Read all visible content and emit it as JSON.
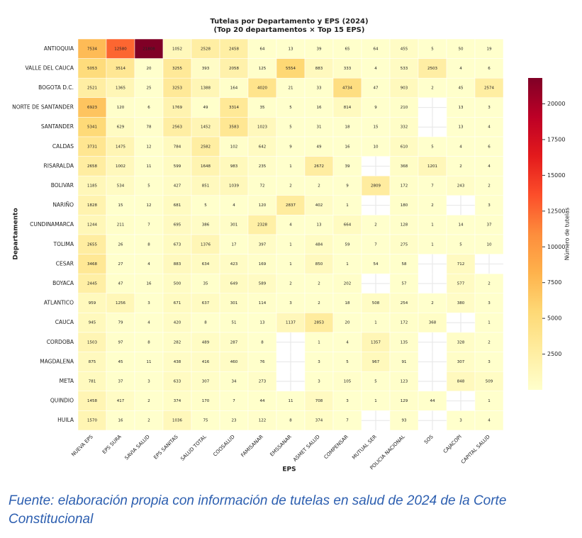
{
  "chart_data": {
    "type": "heatmap",
    "title": "Tutelas por Departamento y EPS (2024)",
    "subtitle": "(Top 20 departamentos × Top 15 EPS)",
    "x_label": "EPS",
    "y_label": "Departamento",
    "colorbar_label": "Número de tutelas",
    "colormap": "YlOrRd",
    "clim": [
      1,
      21808
    ],
    "cticks": [
      2500,
      5000,
      7500,
      10000,
      12500,
      15000,
      17500,
      20000
    ],
    "x": [
      "NUEVA EPS",
      "EPS SURA",
      "SAVIA SALUD",
      "EPS SANITAS",
      "SALUD TOTAL",
      "COOSALUD",
      "FAMISANAR",
      "EMSSANAR",
      "ASMET SALUD",
      "COMPENSAR",
      "MUTUAL SER",
      "POLICIA NACIONAL",
      "SOS",
      "CAJACOPI",
      "CAPITAL SALUD"
    ],
    "y": [
      "ANTIOQUIA",
      "VALLE DEL CAUCA",
      "BOGOTA D.C.",
      "NORTE DE SANTANDER",
      "SANTANDER",
      "CALDAS",
      "RISARALDA",
      "BOLIVAR",
      "NARIÑO",
      "CUNDINAMARCA",
      "TOLIMA",
      "CESAR",
      "BOYACA",
      "ATLANTICO",
      "CAUCA",
      "CORDOBA",
      "MAGDALENA",
      "META",
      "QUINDIO",
      "HUILA"
    ],
    "values": [
      [
        7534,
        12580,
        21808,
        1052,
        2528,
        2458,
        64,
        13,
        39,
        65,
        64,
        455,
        5,
        50,
        19
      ],
      [
        5053,
        3514,
        20,
        3255,
        393,
        2058,
        125,
        5554,
        883,
        333,
        4,
        533,
        2503,
        4,
        6
      ],
      [
        2521,
        1365,
        25,
        3253,
        1388,
        164,
        4020,
        21,
        33,
        4734,
        47,
        903,
        2,
        45,
        2574
      ],
      [
        6923,
        120,
        6,
        1769,
        49,
        3314,
        35,
        5,
        16,
        814,
        9,
        210,
        null,
        13,
        3
      ],
      [
        5341,
        629,
        78,
        2563,
        1452,
        3583,
        1023,
        5,
        31,
        18,
        15,
        332,
        null,
        13,
        4
      ],
      [
        3731,
        1475,
        12,
        784,
        2582,
        102,
        642,
        9,
        49,
        16,
        10,
        610,
        5,
        4,
        6
      ],
      [
        2658,
        1002,
        11,
        599,
        1648,
        983,
        235,
        1,
        2672,
        39,
        null,
        368,
        1201,
        2,
        4
      ],
      [
        1185,
        534,
        5,
        427,
        851,
        1039,
        72,
        2,
        2,
        9,
        2809,
        172,
        7,
        243,
        2
      ],
      [
        1828,
        15,
        12,
        681,
        5,
        4,
        120,
        2837,
        402,
        1,
        null,
        180,
        2,
        null,
        3
      ],
      [
        1244,
        211,
        7,
        695,
        386,
        301,
        2328,
        4,
        13,
        664,
        2,
        128,
        1,
        14,
        37
      ],
      [
        2655,
        26,
        8,
        673,
        1376,
        17,
        397,
        1,
        484,
        59,
        7,
        275,
        1,
        5,
        10
      ],
      [
        3468,
        27,
        4,
        883,
        634,
        423,
        169,
        1,
        850,
        1,
        54,
        58,
        null,
        712,
        null
      ],
      [
        2445,
        47,
        16,
        500,
        35,
        649,
        589,
        2,
        2,
        202,
        null,
        57,
        null,
        577,
        2
      ],
      [
        959,
        1256,
        3,
        671,
        637,
        301,
        114,
        3,
        2,
        18,
        508,
        254,
        2,
        380,
        3
      ],
      [
        945,
        79,
        4,
        420,
        8,
        51,
        13,
        1137,
        2853,
        20,
        1,
        172,
        368,
        null,
        1
      ],
      [
        1503,
        97,
        8,
        282,
        489,
        287,
        8,
        null,
        1,
        4,
        1357,
        135,
        null,
        328,
        2
      ],
      [
        875,
        45,
        11,
        438,
        416,
        460,
        76,
        null,
        3,
        5,
        967,
        91,
        null,
        307,
        3
      ],
      [
        781,
        37,
        3,
        633,
        307,
        34,
        273,
        null,
        3,
        105,
        5,
        123,
        null,
        848,
        509
      ],
      [
        1458,
        417,
        2,
        374,
        170,
        7,
        44,
        11,
        708,
        3,
        1,
        129,
        44,
        null,
        1
      ],
      [
        1570,
        16,
        2,
        1036,
        75,
        23,
        122,
        8,
        374,
        7,
        null,
        93,
        null,
        3,
        4
      ]
    ]
  },
  "caption": "Fuente: elaboración propia con información de tutelas en salud de 2024 de la Corte Constitucional"
}
